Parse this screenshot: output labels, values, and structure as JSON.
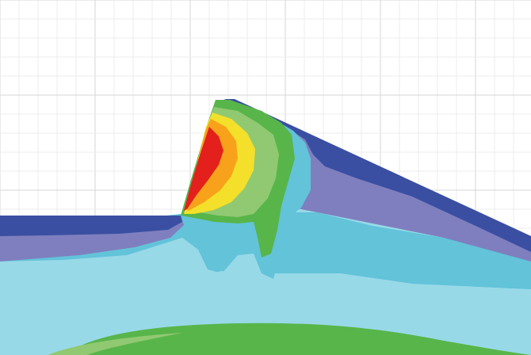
{
  "viewport": {
    "background": "#ffffff",
    "grid_visible": true,
    "grid_major_color": "#d6d6d6",
    "grid_minor_color": "#ececec"
  },
  "contour_legend_colors": {
    "level_1_dark_blue": "#3a4fa1",
    "level_2_slate_purple": "#7f7fbf",
    "level_3_cyan": "#62c3d9",
    "level_4_light_cyan": "#98d9e8",
    "level_5_green": "#58b54a",
    "level_6_light_green": "#90c972",
    "level_7_yellow": "#f4e02a",
    "level_8_orange": "#f7a21a",
    "level_9_red": "#e3201c"
  }
}
